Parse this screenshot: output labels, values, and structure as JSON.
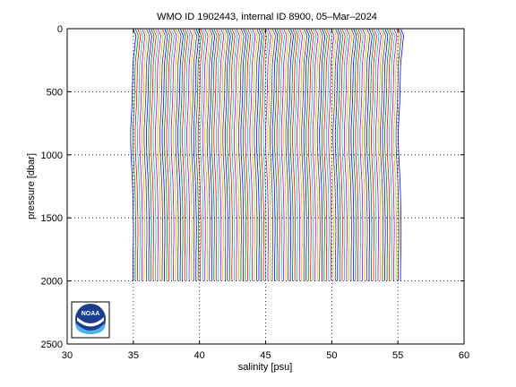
{
  "chart_data": {
    "type": "line",
    "title": "WMO ID 1902443, internal ID 8900, 05–Mar–2024",
    "xlabel": "salinity [psu]",
    "ylabel": "pressure [dbar]",
    "xlim": [
      30,
      60
    ],
    "ylim": [
      0,
      2500
    ],
    "y_reversed": true,
    "grid": "dotted",
    "xticks": [
      "30",
      "35",
      "40",
      "45",
      "50",
      "55",
      "60"
    ],
    "yticks": [
      "0",
      "500",
      "1000",
      "1500",
      "2000",
      "2500"
    ],
    "n_profiles": 120,
    "profile_offset_step": 0.17,
    "base_profile": {
      "pressure": [
        5,
        20,
        40,
        60,
        80,
        100,
        130,
        160,
        200,
        250,
        300,
        400,
        500,
        600,
        700,
        800,
        900,
        1000,
        1100,
        1200,
        1300,
        1400,
        1500,
        1600,
        1700,
        1800,
        1900,
        2000
      ],
      "salinity": [
        35.0,
        35.05,
        35.15,
        35.2,
        35.18,
        35.15,
        35.12,
        35.1,
        35.05,
        35.0,
        34.97,
        34.95,
        34.93,
        34.9,
        34.85,
        34.8,
        34.8,
        34.83,
        34.88,
        34.93,
        34.96,
        34.98,
        35.0,
        35.01,
        35.0,
        34.98,
        34.97,
        34.97
      ]
    },
    "colors": [
      "#0000ff",
      "#008000",
      "#ff0000",
      "#00bfbf",
      "#bf00bf",
      "#bfbf00",
      "#404040"
    ]
  },
  "logo": {
    "text": "NOAA"
  }
}
